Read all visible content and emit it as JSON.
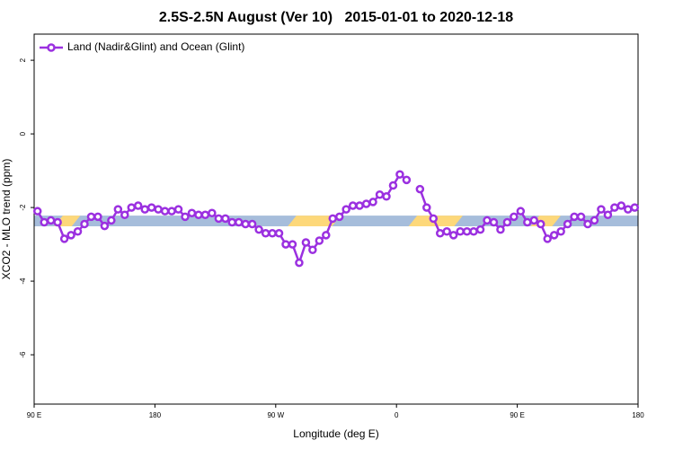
{
  "chart_data": {
    "type": "line",
    "title": "2.5S-2.5N August (Ver 10)   2015-01-01 to 2020-12-18",
    "xlabel": "Longitude (deg E)",
    "ylabel": "XCO2 - MLO trend (ppm)",
    "xlim": [
      90,
      540
    ],
    "xticks": [
      {
        "value": 90,
        "label": "90 E"
      },
      {
        "value": 180,
        "label": "180"
      },
      {
        "value": 270,
        "label": "90 W"
      },
      {
        "value": 360,
        "label": "0"
      },
      {
        "value": 450,
        "label": "90 E"
      },
      {
        "value": 540,
        "label": "180"
      }
    ],
    "ylim": [
      -7.34,
      2.71
    ],
    "yticks": [
      2,
      0,
      -2,
      -4,
      -6
    ],
    "grid": false,
    "legend": "top-left",
    "band": {
      "ylim": [
        -2.51,
        -2.22
      ],
      "color": "#a6bddb",
      "highlight_color": "#fdd87a",
      "highlights": [
        [
          105,
          118
        ],
        [
          279,
          312
        ],
        [
          369,
          403
        ],
        [
          460,
          476
        ]
      ]
    },
    "x": [
      92.5,
      97.5,
      102.5,
      107.5,
      112.5,
      117.5,
      122.5,
      127.5,
      132.5,
      137.5,
      142.5,
      147.5,
      152.5,
      157.5,
      162.5,
      167.5,
      172.5,
      177.5,
      182.5,
      187.5,
      192.5,
      197.5,
      202.5,
      207.5,
      212.5,
      217.5,
      222.5,
      227.5,
      232.5,
      237.5,
      242.5,
      247.5,
      252.5,
      257.5,
      262.5,
      267.5,
      272.5,
      277.5,
      282.5,
      287.5,
      292.5,
      297.5,
      302.5,
      307.5,
      312.5,
      317.5,
      322.5,
      327.5,
      332.5,
      337.5,
      342.5,
      347.5,
      352.5,
      357.5,
      362.5,
      367.5,
      372.5,
      377.5,
      382.5,
      387.5,
      392.5,
      397.5,
      402.5,
      407.5,
      412.5,
      417.5,
      422.5,
      427.5,
      432.5,
      437.5,
      442.5,
      447.5,
      452.5,
      457.5,
      462.5,
      467.5,
      472.5,
      477.5,
      482.5,
      487.5,
      492.5,
      497.5,
      502.5,
      507.5,
      512.5,
      517.5,
      522.5,
      527.5,
      532.5,
      537.5
    ],
    "series": [
      {
        "name": "Land (Nadir&Glint) and Ocean (Glint)",
        "color": "#9b30e0",
        "values": [
          -2.1,
          -2.4,
          -2.35,
          -2.4,
          -2.85,
          -2.75,
          -2.65,
          -2.45,
          -2.25,
          -2.25,
          -2.5,
          -2.35,
          -2.05,
          -2.2,
          -2.0,
          -1.95,
          -2.05,
          -2.0,
          -2.05,
          -2.1,
          -2.1,
          -2.05,
          -2.25,
          -2.15,
          -2.2,
          -2.2,
          -2.15,
          -2.3,
          -2.3,
          -2.4,
          -2.4,
          -2.45,
          -2.45,
          -2.6,
          -2.7,
          -2.7,
          -2.7,
          -3.0,
          -3.0,
          -3.5,
          -2.95,
          -3.15,
          -2.9,
          -2.75,
          -2.3,
          -2.25,
          -2.05,
          -1.95,
          -1.95,
          -1.9,
          -1.85,
          -1.65,
          -1.7,
          -1.4,
          -1.1,
          -1.25,
          null,
          -1.5,
          -2.0,
          -2.3,
          -2.7,
          -2.65,
          -2.75,
          -2.65,
          -2.65,
          -2.65,
          -2.6,
          -2.35,
          -2.4,
          -2.6,
          -2.4,
          -2.25,
          -2.1,
          -2.4,
          -2.35,
          -2.45,
          -2.85,
          -2.75,
          -2.65,
          -2.45,
          -2.25,
          -2.25,
          -2.45,
          -2.35,
          -2.05,
          -2.2,
          -2.0,
          -1.95,
          -2.05,
          -2.0
        ]
      }
    ]
  }
}
